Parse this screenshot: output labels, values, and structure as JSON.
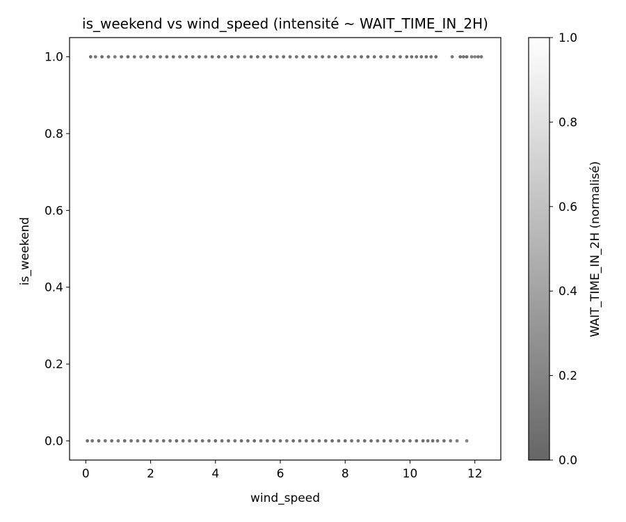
{
  "chart_data": {
    "type": "scatter",
    "title": "is_weekend vs wind_speed (intensité ~ WAIT_TIME_IN_2H)",
    "xlabel": "wind_speed",
    "ylabel": "is_weekend",
    "xlim": [
      -0.5,
      12.8
    ],
    "ylim": [
      -0.05,
      1.05
    ],
    "x_ticks": [
      0,
      2,
      4,
      6,
      8,
      10,
      12
    ],
    "x_tick_labels": [
      "0",
      "2",
      "4",
      "6",
      "8",
      "10",
      "12"
    ],
    "y_ticks": [
      0.0,
      0.2,
      0.4,
      0.6,
      0.8,
      1.0
    ],
    "y_tick_labels": [
      "0.0",
      "0.2",
      "0.4",
      "0.6",
      "0.8",
      "1.0"
    ],
    "grid": false,
    "colorbar": {
      "label": "WAIT_TIME_IN_2H (normalisé)",
      "range": [
        0.0,
        1.0
      ],
      "ticks": [
        0.0,
        0.2,
        0.4,
        0.6,
        0.8,
        1.0
      ],
      "tick_labels": [
        "0.0",
        "0.2",
        "0.4",
        "0.6",
        "0.8",
        "1.0"
      ],
      "colormap": "gray",
      "alpha": 0.6
    },
    "series": [
      {
        "y": 1,
        "x": [
          0.15,
          0.3,
          0.5,
          0.7,
          0.9,
          1.1,
          1.3,
          1.5,
          1.7,
          1.9,
          2.1,
          2.3,
          2.5,
          2.7,
          2.9,
          3.1,
          3.3,
          3.5,
          3.7,
          3.9,
          4.1,
          4.3,
          4.5,
          4.7,
          4.9,
          5.1,
          5.3,
          5.5,
          5.7,
          5.9,
          6.1,
          6.3,
          6.5,
          6.7,
          6.9,
          7.1,
          7.3,
          7.5,
          7.7,
          7.9,
          8.1,
          8.3,
          8.5,
          8.7,
          8.9,
          9.1,
          9.3,
          9.5,
          9.7,
          9.9,
          10.05,
          10.2,
          10.35,
          10.5,
          10.65,
          10.8,
          11.3,
          11.55,
          11.65,
          11.75,
          11.9,
          12.0,
          12.1,
          12.2
        ],
        "intensity": [
          0.05,
          0.1,
          0.04,
          0.08,
          0.12,
          0.06,
          0.03,
          0.09,
          0.15,
          0.05,
          0.07,
          0.1,
          0.04,
          0.06,
          0.11,
          0.05,
          0.08,
          0.03,
          0.1,
          0.06,
          0.05,
          0.09,
          0.04,
          0.07,
          0.12,
          0.05,
          0.06,
          0.08,
          0.03,
          0.1,
          0.05,
          0.07,
          0.09,
          0.04,
          0.06,
          0.08,
          0.05,
          0.1,
          0.03,
          0.07,
          0.06,
          0.09,
          0.05,
          0.04,
          0.08,
          0.06,
          0.1,
          0.05,
          0.07,
          0.04,
          0.06,
          0.08,
          0.05,
          0.03,
          0.06,
          0.04,
          0.1,
          0.05,
          0.08,
          0.04,
          0.15,
          0.2,
          0.1,
          0.12
        ]
      },
      {
        "y": 0,
        "x": [
          0.05,
          0.2,
          0.4,
          0.6,
          0.8,
          1.0,
          1.2,
          1.4,
          1.6,
          1.8,
          2.0,
          2.2,
          2.4,
          2.6,
          2.8,
          3.0,
          3.2,
          3.4,
          3.6,
          3.8,
          4.0,
          4.2,
          4.4,
          4.6,
          4.8,
          5.0,
          5.2,
          5.4,
          5.6,
          5.8,
          6.0,
          6.2,
          6.4,
          6.6,
          6.8,
          7.0,
          7.2,
          7.4,
          7.6,
          7.8,
          8.0,
          8.2,
          8.4,
          8.6,
          8.8,
          9.0,
          9.2,
          9.4,
          9.6,
          9.8,
          10.0,
          10.2,
          10.4,
          10.55,
          10.7,
          10.85,
          11.05,
          11.25,
          11.45,
          11.75
        ],
        "intensity": [
          0.05,
          0.08,
          0.04,
          0.1,
          0.06,
          0.12,
          0.05,
          0.07,
          0.09,
          0.04,
          0.06,
          0.1,
          0.05,
          0.08,
          0.03,
          0.07,
          0.11,
          0.05,
          0.06,
          0.09,
          0.04,
          0.08,
          0.06,
          0.1,
          0.05,
          0.07,
          0.04,
          0.09,
          0.06,
          0.05,
          0.08,
          0.1,
          0.04,
          0.06,
          0.07,
          0.05,
          0.09,
          0.06,
          0.04,
          0.08,
          0.05,
          0.07,
          0.1,
          0.06,
          0.05,
          0.08,
          0.04,
          0.06,
          0.09,
          0.05,
          0.07,
          0.04,
          0.06,
          0.08,
          0.05,
          0.1,
          0.06,
          0.12,
          0.15,
          0.2
        ]
      }
    ]
  }
}
